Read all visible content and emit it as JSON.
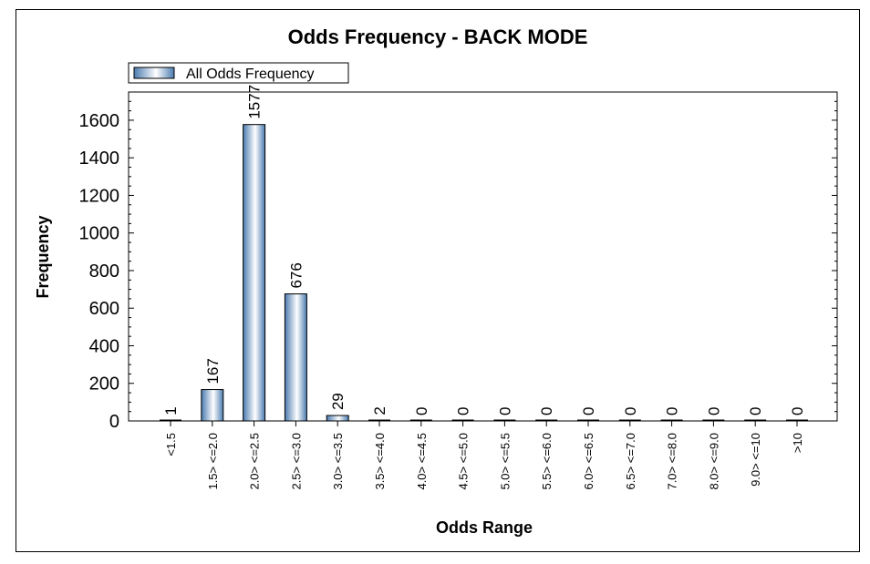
{
  "chart_data": {
    "type": "bar",
    "title": "Odds Frequency - BACK MODE",
    "xlabel": "Odds Range",
    "ylabel": "Frequency",
    "categories": [
      "<1.5",
      "1.5> <=2.0",
      "2.0> <=2.5",
      "2.5> <=3.0",
      "3.0> <=3.5",
      "3.5> <=4.0",
      "4.0> <=4.5",
      "4.5> <=5.0",
      "5.0> <=5.5",
      "5.5> <=6.0",
      "6.0> <=6.5",
      "6.5> <=7.0",
      "7.0> <=8.0",
      "8.0> <=9.0",
      "9.0> <=10",
      ">10"
    ],
    "series": [
      {
        "name": "All Odds Frequency",
        "values": [
          1,
          167,
          1577,
          676,
          29,
          2,
          0,
          0,
          0,
          0,
          0,
          0,
          0,
          0,
          0,
          0
        ]
      }
    ],
    "ylim": [
      0,
      1750
    ],
    "yticks": [
      0,
      200,
      400,
      600,
      800,
      1000,
      1200,
      1400,
      1600
    ],
    "legend_position": "top-left",
    "grid": false,
    "colors": {
      "bar_dark": "#4a7bb0",
      "bar_light": "#ffffff",
      "outline": "#000000"
    }
  }
}
